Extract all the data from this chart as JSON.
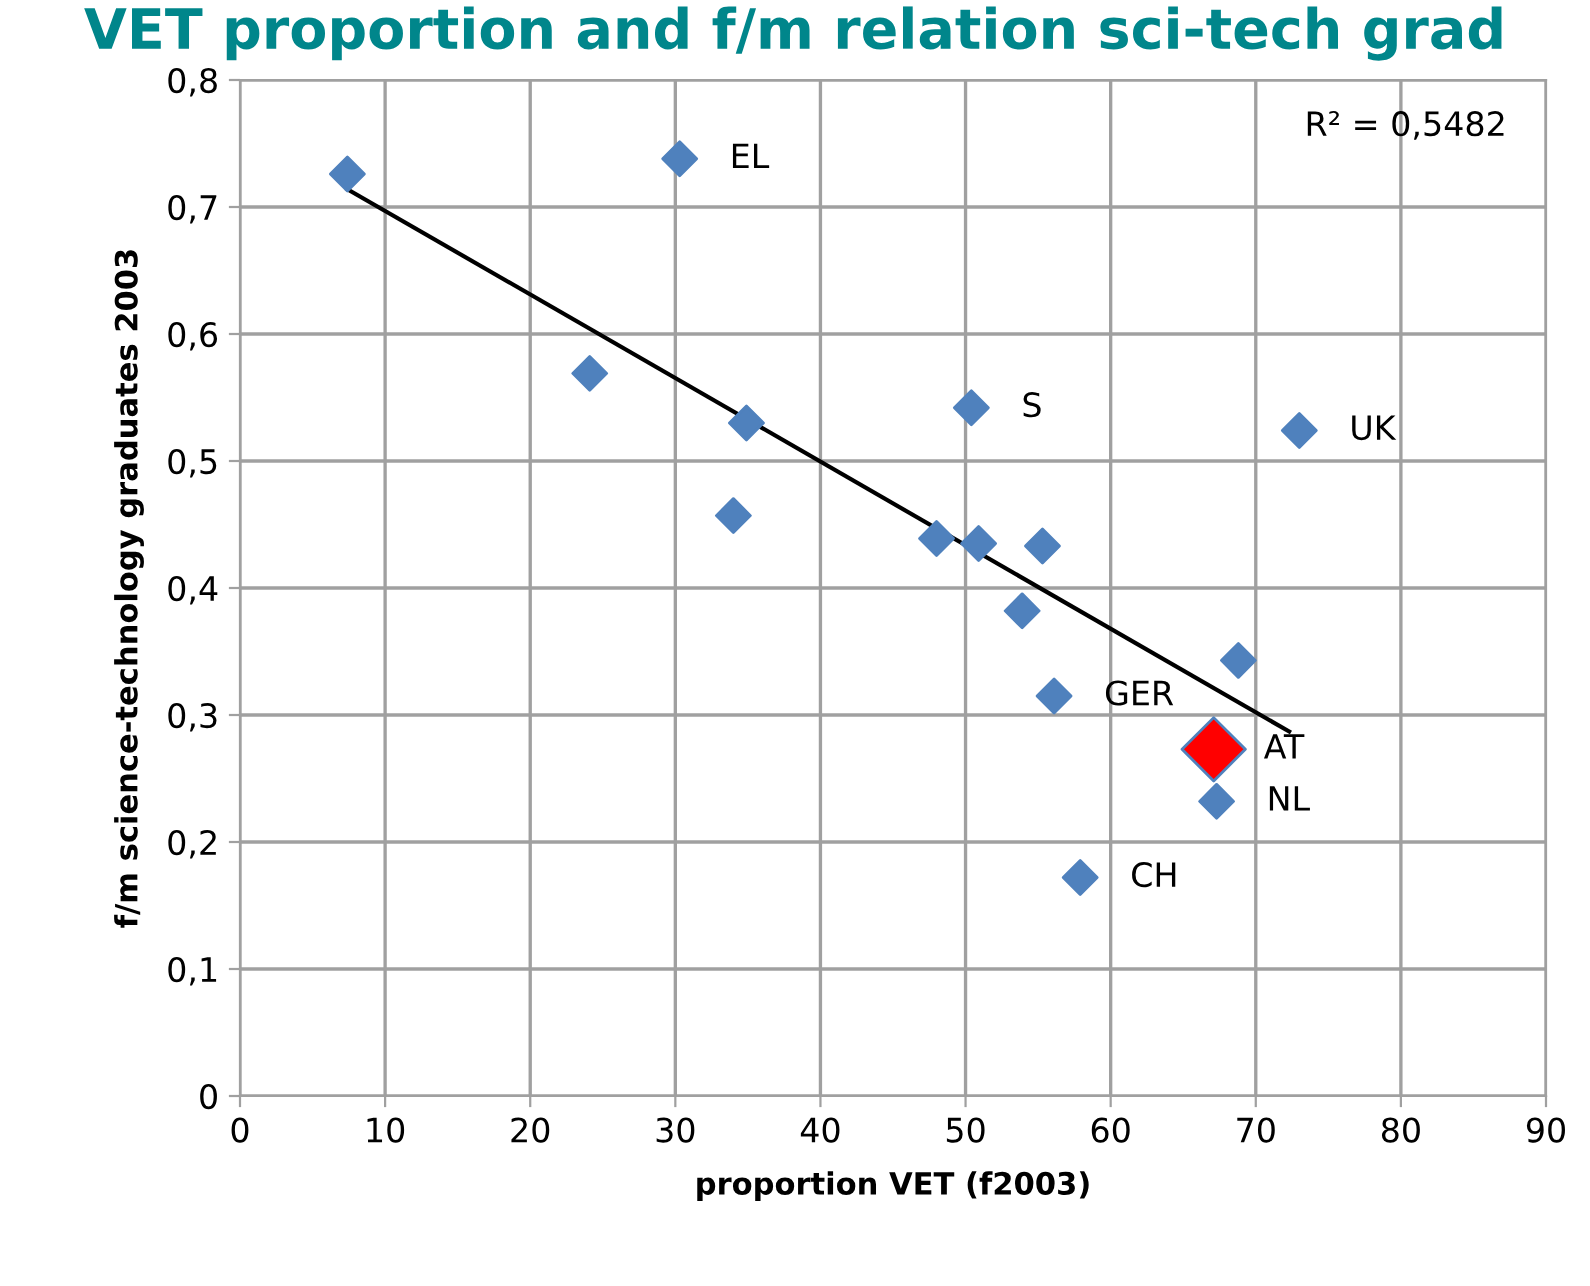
{
  "chart_data": {
    "type": "scatter",
    "title": "VET proportion and f/m relation sci-tech grad",
    "xlabel": "proportion VET (f2003)",
    "ylabel": "f/m science-technology graduates 2003",
    "marker": "diamond",
    "grid": true,
    "xlim": [
      0,
      90
    ],
    "xticks": [
      0,
      10,
      20,
      30,
      40,
      50,
      60,
      70,
      80,
      90
    ],
    "ylim": [
      0,
      0.8
    ],
    "yticks": [
      0,
      {
        "value": 0.1,
        "label": "0,1"
      },
      {
        "value": 0.2,
        "label": "0,2"
      },
      {
        "value": 0.3,
        "label": "0,3"
      },
      {
        "value": 0.4,
        "label": "0,4"
      },
      {
        "value": 0.5,
        "label": "0,5"
      },
      {
        "value": 0.6,
        "label": "0,6"
      },
      {
        "value": 0.7,
        "label": "0,7"
      },
      {
        "value": 0.8,
        "label": "0,8"
      }
    ],
    "series": [
      {
        "color": "#4f81bd",
        "x": [
          7.4,
          30.3,
          24.1,
          34.9,
          34.0,
          50.4,
          73.0,
          48.0,
          50.9,
          55.3,
          53.9,
          68.8,
          56.1,
          67.3,
          57.9
        ],
        "values": [
          0.726,
          0.738,
          0.569,
          0.53,
          0.457,
          0.542,
          0.524,
          0.439,
          0.435,
          0.433,
          0.382,
          0.343,
          0.315,
          0.232,
          0.172
        ]
      },
      {
        "color": "#ff0000",
        "x": [
          67.1
        ],
        "values": [
          0.273
        ]
      },
      {
        "type": "line",
        "color": "#000000",
        "marker": "none",
        "x": [
          7.4,
          72.3
        ],
        "values": [
          0.714,
          0.287
        ]
      }
    ],
    "annotations": [
      {
        "text": "EL",
        "x": 30.3,
        "y": 0.738
      },
      {
        "text": "S",
        "x": 50.4,
        "y": 0.542
      },
      {
        "text": "UK",
        "x": 73.0,
        "y": 0.524
      },
      {
        "text": "GER",
        "x": 56.1,
        "y": 0.315
      },
      {
        "text": "AT",
        "x": 67.1,
        "y": 0.273
      },
      {
        "text": "NL",
        "x": 67.3,
        "y": 0.232
      },
      {
        "text": "CH",
        "x": 57.9,
        "y": 0.172
      },
      "R² = 0,5482"
    ]
  }
}
